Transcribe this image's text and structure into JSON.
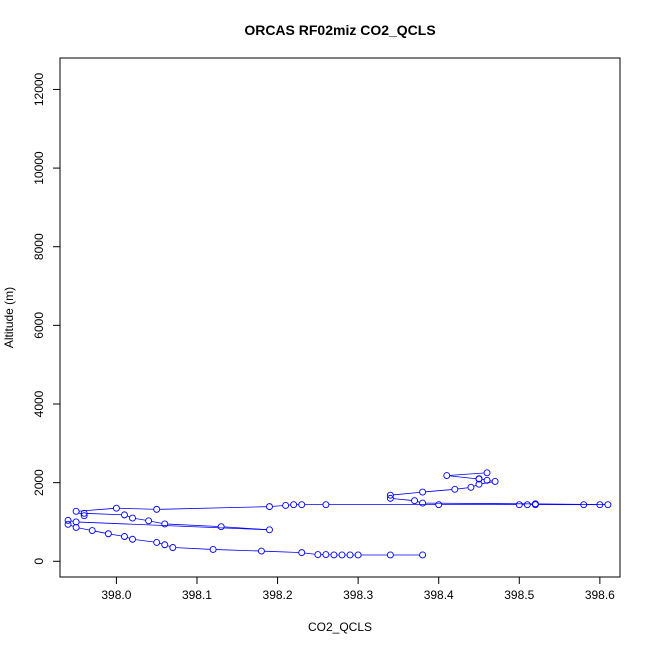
{
  "chart_data": {
    "type": "scatter",
    "title": "ORCAS RF02miz CO2_QCLS",
    "xlabel": "CO2_QCLS",
    "ylabel": "Altitude (m)",
    "xlim": [
      397.93,
      398.625
    ],
    "ylim": [
      -400,
      12800
    ],
    "x_ticks": [
      398.0,
      398.1,
      398.2,
      398.3,
      398.4,
      398.5,
      398.6
    ],
    "x_tick_labels": [
      "398.0",
      "398.1",
      "398.2",
      "398.3",
      "398.4",
      "398.5",
      "398.6"
    ],
    "y_ticks": [
      0,
      2000,
      4000,
      6000,
      8000,
      10000,
      12000
    ],
    "y_tick_labels": [
      "0",
      "2000",
      "4000",
      "6000",
      "8000",
      "10000",
      "12000"
    ],
    "grid": false,
    "legend": "none",
    "marker": "open-circle",
    "connected": true,
    "color": "#0000ff",
    "series": [
      {
        "x": [
          398.38,
          398.34,
          398.3,
          398.29,
          398.28,
          398.27,
          398.26,
          398.25,
          398.23,
          398.18,
          398.12,
          398.07,
          398.06,
          398.05,
          398.02,
          398.01,
          397.99,
          397.97,
          397.95,
          397.94,
          397.94,
          397.95,
          398.19,
          398.13,
          398.06,
          398.04,
          398.02,
          398.01,
          397.96,
          397.96,
          397.95,
          398.0,
          398.05,
          398.19,
          398.21,
          398.22,
          398.23,
          398.26,
          398.4,
          398.5,
          398.51,
          398.52,
          398.58,
          398.6,
          398.61,
          398.52,
          398.38,
          398.37,
          398.34,
          398.34,
          398.38,
          398.42,
          398.44,
          398.45,
          398.47,
          398.46,
          398.45,
          398.45,
          398.41,
          398.46
        ],
        "y": [
          160,
          160,
          160,
          160,
          160,
          160,
          170,
          170,
          220,
          260,
          300,
          350,
          420,
          480,
          560,
          630,
          700,
          780,
          860,
          940,
          1040,
          1000,
          800,
          880,
          950,
          1030,
          1100,
          1180,
          1220,
          1160,
          1270,
          1350,
          1320,
          1390,
          1420,
          1440,
          1440,
          1440,
          1440,
          1440,
          1440,
          1440,
          1440,
          1440,
          1440,
          1460,
          1480,
          1540,
          1600,
          1680,
          1760,
          1830,
          1880,
          1960,
          2030,
          2060,
          2100,
          2090,
          2180,
          2250
        ]
      }
    ]
  }
}
